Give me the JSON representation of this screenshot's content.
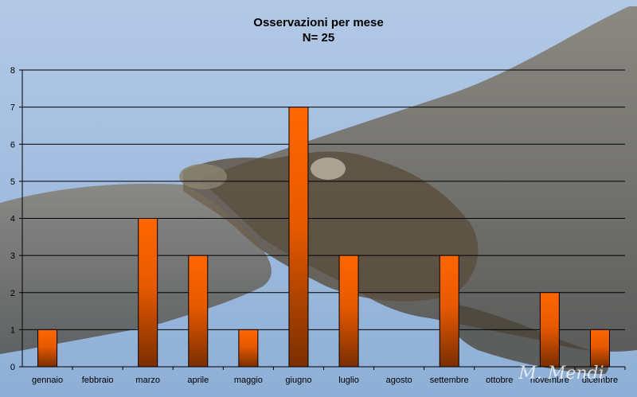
{
  "chart_data": {
    "type": "bar",
    "title": "Osservazioni per mese",
    "subtitle": "N= 25",
    "xlabel": "",
    "ylabel": "",
    "ylim": [
      0,
      8
    ],
    "yticks": [
      0,
      1,
      2,
      3,
      4,
      5,
      6,
      7,
      8
    ],
    "grid": true,
    "categories": [
      "gennaio",
      "febbraio",
      "marzo",
      "aprile",
      "maggio",
      "giugno",
      "luglio",
      "agosto",
      "settembre",
      "ottobre",
      "novembre",
      "dicembre"
    ],
    "values": [
      1,
      0,
      4,
      3,
      1,
      7,
      3,
      0,
      3,
      0,
      2,
      1
    ],
    "bar_color_top": "#ff6600",
    "bar_color_bottom": "#7a2e00"
  },
  "watermark": "M. Mendi",
  "colors": {
    "sky_top": "#a9c3e2",
    "sky_bottom": "#8fb0d8",
    "bird": "#5a5040"
  }
}
